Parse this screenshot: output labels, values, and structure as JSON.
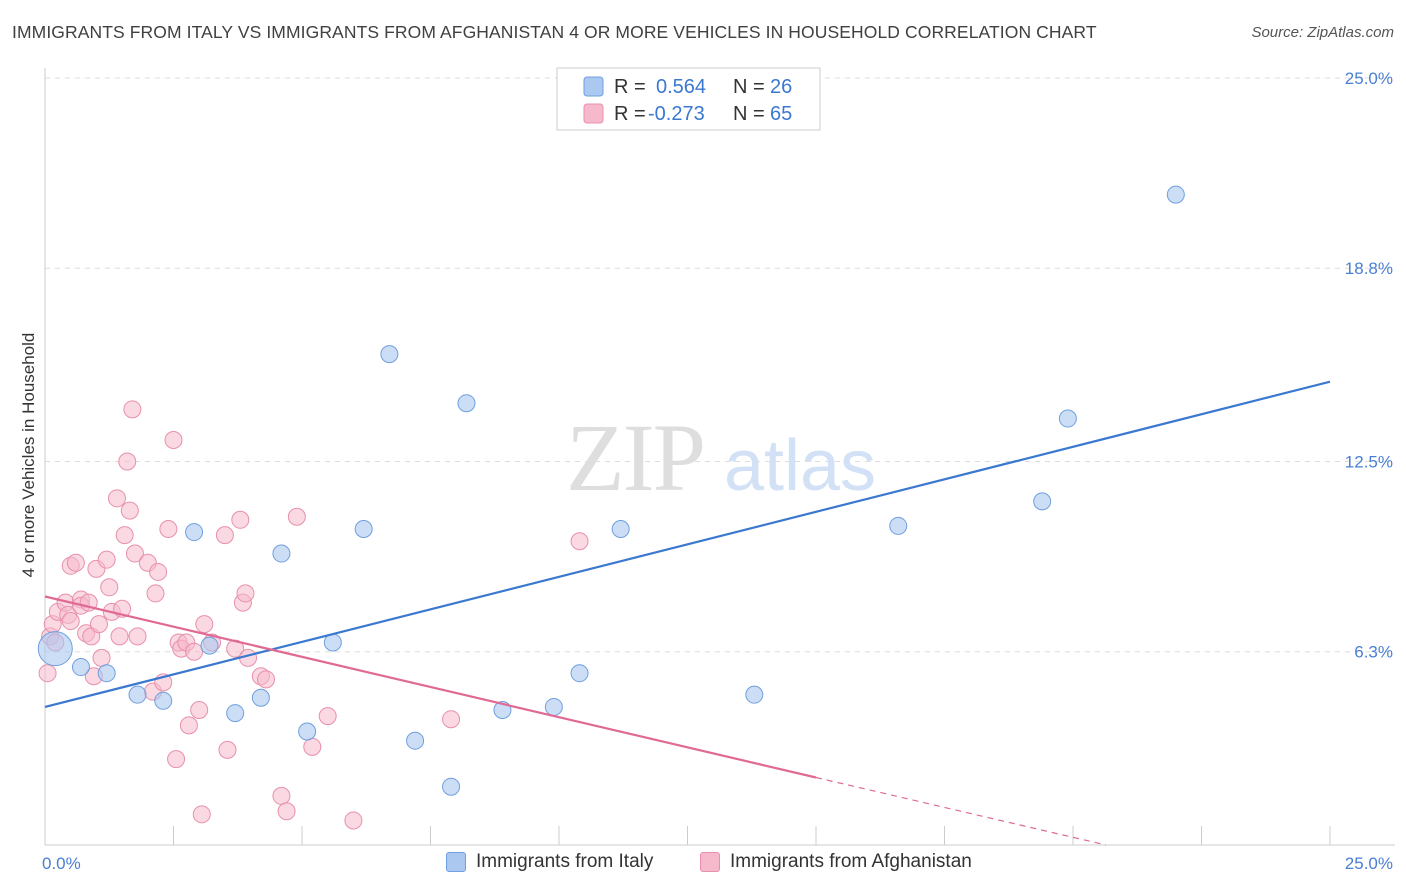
{
  "header": {
    "title": "IMMIGRANTS FROM ITALY VS IMMIGRANTS FROM AFGHANISTAN 4 OR MORE VEHICLES IN HOUSEHOLD CORRELATION CHART",
    "source": "Source: ZipAtlas.com"
  },
  "watermark": {
    "zip": "ZIP",
    "atlas": "atlas"
  },
  "legend": {
    "italy": {
      "r_label": "R =",
      "r_value": "0.564",
      "n_label": "N =",
      "n_value": "26"
    },
    "afghanistan": {
      "r_label": "R =",
      "r_value": "-0.273",
      "n_label": "N =",
      "n_value": "65"
    }
  },
  "bottom_legend": {
    "italy": "Immigrants from Italy",
    "afghanistan": "Immigrants from Afghanistan"
  },
  "colors": {
    "italy_fill": "#aac8f0",
    "italy_stroke": "#6f9fde",
    "italy_line": "#3b78d0",
    "afghan_fill": "#f6b9cc",
    "afghan_stroke": "#e890ac",
    "afghan_line": "#e06a94",
    "grid": "#dddddd",
    "tick_text": "#4a7fd4"
  },
  "chart_data": {
    "type": "scatter",
    "title": "IMMIGRANTS FROM ITALY VS IMMIGRANTS FROM AFGHANISTAN 4 OR MORE VEHICLES IN HOUSEHOLD CORRELATION CHART",
    "xlabel": "",
    "ylabel": "4 or more Vehicles in Household",
    "xlim": [
      0,
      25
    ],
    "ylim": [
      0,
      25
    ],
    "x_tick_labels": [
      "0.0%",
      "25.0%"
    ],
    "y_ticks": [
      6.3,
      12.5,
      18.8,
      25.0
    ],
    "y_tick_labels": [
      "6.3%",
      "12.5%",
      "18.8%",
      "25.0%"
    ],
    "series": [
      {
        "name": "Immigrants from Italy",
        "color": "#aac8f0",
        "r": 0.564,
        "n": 26,
        "trend": {
          "x": [
            0,
            25
          ],
          "y": [
            4.5,
            15.1
          ]
        },
        "points": [
          {
            "x": 0.2,
            "y": 6.4,
            "size": "large"
          },
          {
            "x": 0.7,
            "y": 5.8
          },
          {
            "x": 1.2,
            "y": 5.6
          },
          {
            "x": 1.8,
            "y": 4.9
          },
          {
            "x": 2.3,
            "y": 4.7
          },
          {
            "x": 2.9,
            "y": 10.2
          },
          {
            "x": 3.2,
            "y": 6.5
          },
          {
            "x": 3.7,
            "y": 4.3
          },
          {
            "x": 4.2,
            "y": 4.8
          },
          {
            "x": 4.6,
            "y": 9.5
          },
          {
            "x": 5.1,
            "y": 3.7
          },
          {
            "x": 5.6,
            "y": 6.6
          },
          {
            "x": 6.2,
            "y": 10.3
          },
          {
            "x": 6.7,
            "y": 16.0
          },
          {
            "x": 7.2,
            "y": 3.4
          },
          {
            "x": 7.9,
            "y": 1.9
          },
          {
            "x": 8.2,
            "y": 14.4
          },
          {
            "x": 8.9,
            "y": 4.4
          },
          {
            "x": 9.9,
            "y": 4.5
          },
          {
            "x": 10.4,
            "y": 5.6
          },
          {
            "x": 11.2,
            "y": 10.3
          },
          {
            "x": 13.8,
            "y": 4.9
          },
          {
            "x": 16.6,
            "y": 10.4
          },
          {
            "x": 19.4,
            "y": 11.2
          },
          {
            "x": 19.9,
            "y": 13.9
          },
          {
            "x": 22.0,
            "y": 21.2
          }
        ]
      },
      {
        "name": "Immigrants from Afghanistan",
        "color": "#f6b9cc",
        "r": -0.273,
        "n": 65,
        "trend_solid": {
          "x": [
            0,
            15
          ],
          "y": [
            8.1,
            2.2
          ]
        },
        "trend_dashed": {
          "x": [
            15,
            25
          ],
          "y": [
            2.2,
            -1.7
          ]
        },
        "points": [
          {
            "x": 0.05,
            "y": 5.6
          },
          {
            "x": 0.1,
            "y": 6.8
          },
          {
            "x": 0.15,
            "y": 7.2
          },
          {
            "x": 0.2,
            "y": 6.6
          },
          {
            "x": 0.25,
            "y": 7.6
          },
          {
            "x": 0.4,
            "y": 7.9
          },
          {
            "x": 0.45,
            "y": 7.5
          },
          {
            "x": 0.5,
            "y": 9.1
          },
          {
            "x": 0.5,
            "y": 7.3
          },
          {
            "x": 0.6,
            "y": 9.2
          },
          {
            "x": 0.7,
            "y": 8.0
          },
          {
            "x": 0.7,
            "y": 7.8
          },
          {
            "x": 0.8,
            "y": 6.9
          },
          {
            "x": 0.85,
            "y": 7.9
          },
          {
            "x": 0.9,
            "y": 6.8
          },
          {
            "x": 0.95,
            "y": 5.5
          },
          {
            "x": 1.0,
            "y": 9.0
          },
          {
            "x": 1.05,
            "y": 7.2
          },
          {
            "x": 1.1,
            "y": 6.1
          },
          {
            "x": 1.2,
            "y": 9.3
          },
          {
            "x": 1.25,
            "y": 8.4
          },
          {
            "x": 1.3,
            "y": 7.6
          },
          {
            "x": 1.4,
            "y": 11.3
          },
          {
            "x": 1.45,
            "y": 6.8
          },
          {
            "x": 1.5,
            "y": 7.7
          },
          {
            "x": 1.55,
            "y": 10.1
          },
          {
            "x": 1.6,
            "y": 12.5
          },
          {
            "x": 1.65,
            "y": 10.9
          },
          {
            "x": 1.7,
            "y": 14.2
          },
          {
            "x": 1.75,
            "y": 9.5
          },
          {
            "x": 1.8,
            "y": 6.8
          },
          {
            "x": 2.0,
            "y": 9.2
          },
          {
            "x": 2.1,
            "y": 5.0
          },
          {
            "x": 2.15,
            "y": 8.2
          },
          {
            "x": 2.2,
            "y": 8.9
          },
          {
            "x": 2.3,
            "y": 5.3
          },
          {
            "x": 2.4,
            "y": 10.3
          },
          {
            "x": 2.5,
            "y": 13.2
          },
          {
            "x": 2.55,
            "y": 2.8
          },
          {
            "x": 2.6,
            "y": 6.6
          },
          {
            "x": 2.65,
            "y": 6.4
          },
          {
            "x": 2.75,
            "y": 6.6
          },
          {
            "x": 2.8,
            "y": 3.9
          },
          {
            "x": 2.9,
            "y": 6.3
          },
          {
            "x": 3.0,
            "y": 4.4
          },
          {
            "x": 3.05,
            "y": 1.0
          },
          {
            "x": 3.1,
            "y": 7.2
          },
          {
            "x": 3.25,
            "y": 6.6
          },
          {
            "x": 3.5,
            "y": 10.1
          },
          {
            "x": 3.55,
            "y": 3.1
          },
          {
            "x": 3.7,
            "y": 6.4
          },
          {
            "x": 3.8,
            "y": 10.6
          },
          {
            "x": 3.85,
            "y": 7.9
          },
          {
            "x": 3.9,
            "y": 8.2
          },
          {
            "x": 3.95,
            "y": 6.1
          },
          {
            "x": 4.2,
            "y": 5.5
          },
          {
            "x": 4.3,
            "y": 5.4
          },
          {
            "x": 4.6,
            "y": 1.6
          },
          {
            "x": 4.7,
            "y": 1.1
          },
          {
            "x": 4.9,
            "y": 10.7
          },
          {
            "x": 5.2,
            "y": 3.2
          },
          {
            "x": 5.5,
            "y": 4.2
          },
          {
            "x": 6.0,
            "y": 0.8
          },
          {
            "x": 7.9,
            "y": 4.1
          },
          {
            "x": 10.4,
            "y": 9.9
          }
        ]
      }
    ]
  }
}
